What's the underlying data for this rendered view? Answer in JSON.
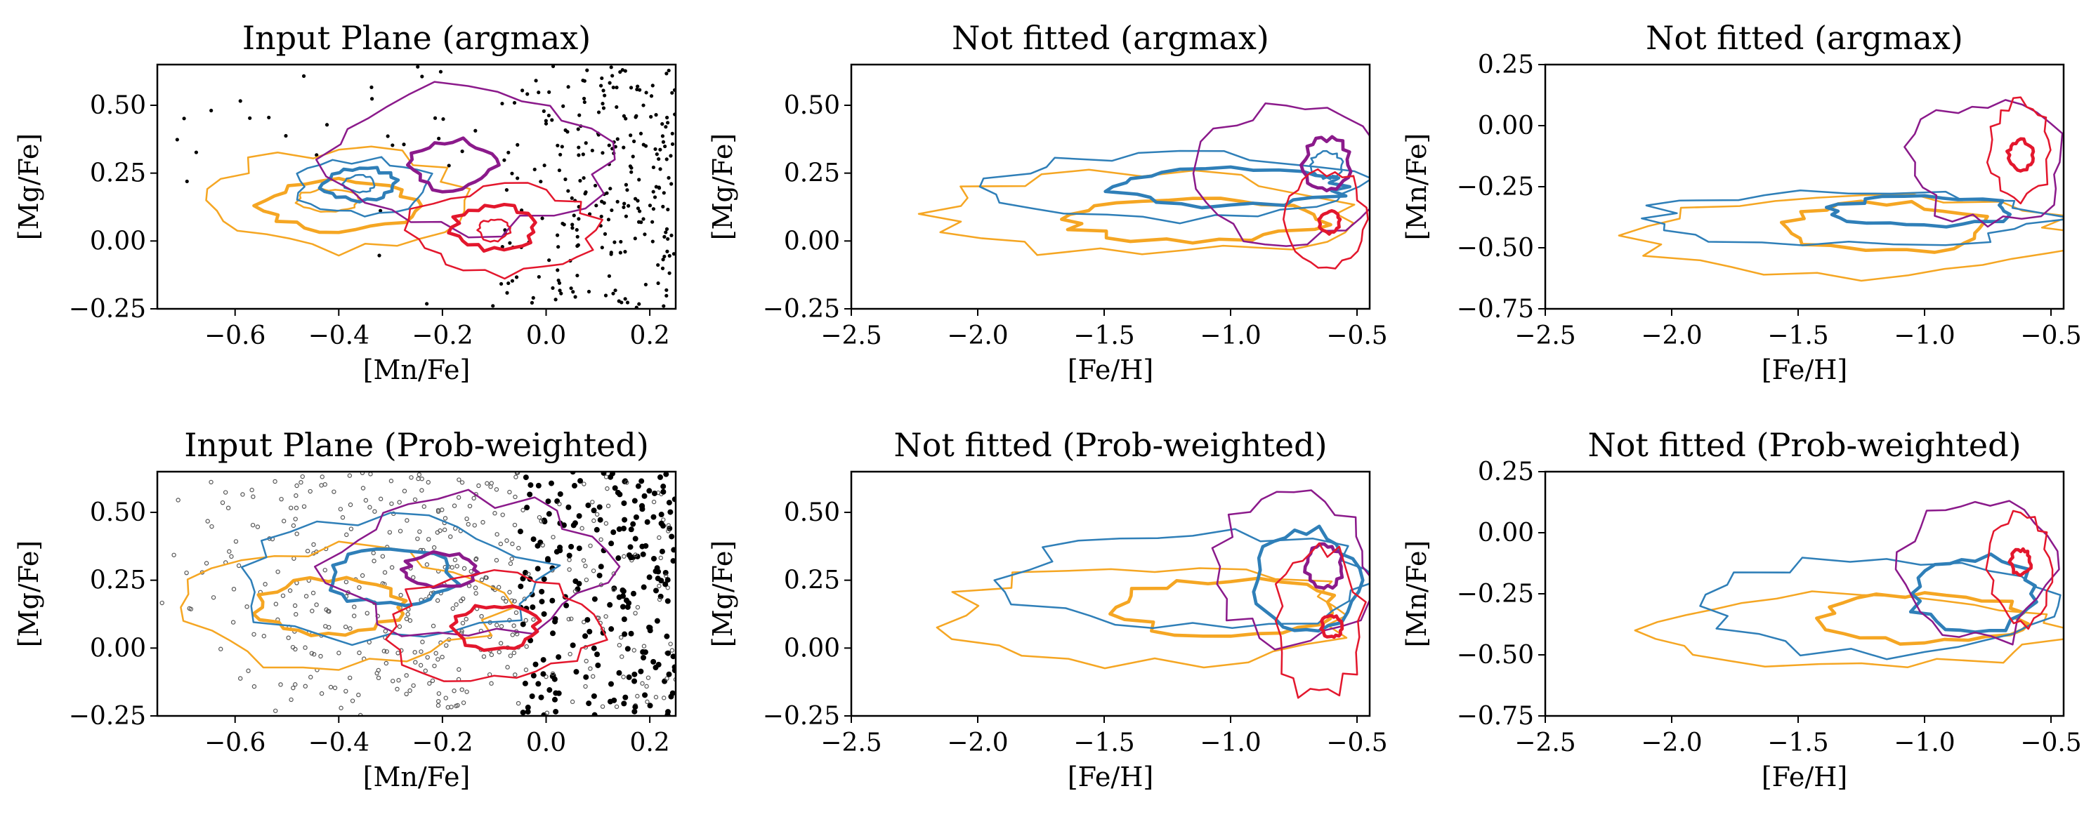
{
  "figure": {
    "type": "contour grid",
    "colors": {
      "orange": "#f5a623",
      "blue": "#2f7fb8",
      "purple": "#8b1a8b",
      "red": "#e3172d",
      "points": "#000000"
    }
  },
  "chart_data": [
    {
      "type": "scatter",
      "title": "Input Plane (argmax)",
      "xlabel": "[Mn/Fe]",
      "ylabel": "[Mg/Fe]",
      "xlim": [
        -0.75,
        0.25
      ],
      "ylim": [
        -0.25,
        0.65
      ],
      "xticks": [
        -0.6,
        -0.4,
        -0.2,
        0.0,
        0.2
      ],
      "yticks": [
        -0.25,
        0.0,
        0.25,
        0.5
      ],
      "xtick_labels": [
        "−0.6",
        "−0.4",
        "−0.2",
        "0.0",
        "0.2"
      ],
      "ytick_labels": [
        "−0.25",
        "0.00",
        "0.25",
        "0.50"
      ],
      "grid": false,
      "points_style": "argmax",
      "series": [
        {
          "color": "orange",
          "levels": [
            {
              "cx": -0.4,
              "cy": 0.15,
              "rx": 0.25,
              "ry": 0.18,
              "w": 1.4
            },
            {
              "cx": -0.4,
              "cy": 0.13,
              "rx": 0.15,
              "ry": 0.09,
              "w": 2.6
            },
            {
              "cx": -0.42,
              "cy": 0.15,
              "rx": 0.06,
              "ry": 0.04,
              "w": 1.4
            }
          ]
        },
        {
          "color": "blue",
          "levels": [
            {
              "cx": -0.35,
              "cy": 0.2,
              "rx": 0.13,
              "ry": 0.1,
              "w": 1.4
            },
            {
              "cx": -0.36,
              "cy": 0.21,
              "rx": 0.07,
              "ry": 0.06,
              "w": 2.6
            },
            {
              "cx": -0.36,
              "cy": 0.21,
              "rx": 0.03,
              "ry": 0.03,
              "w": 1.4
            }
          ]
        },
        {
          "color": "purple",
          "levels": [
            {
              "cx": -0.15,
              "cy": 0.3,
              "rx": 0.26,
              "ry": 0.26,
              "w": 1.4
            },
            {
              "cx": -0.18,
              "cy": 0.28,
              "rx": 0.08,
              "ry": 0.09,
              "w": 2.6
            }
          ]
        },
        {
          "color": "red",
          "levels": [
            {
              "cx": -0.08,
              "cy": 0.04,
              "rx": 0.18,
              "ry": 0.16,
              "w": 1.4
            },
            {
              "cx": -0.1,
              "cy": 0.05,
              "rx": 0.08,
              "ry": 0.08,
              "w": 2.6
            },
            {
              "cx": -0.1,
              "cy": 0.04,
              "rx": 0.03,
              "ry": 0.04,
              "w": 1.4
            }
          ]
        }
      ]
    },
    {
      "type": "line",
      "title": "Not fitted (argmax)",
      "xlabel": "[Fe/H]",
      "ylabel": "[Mg/Fe]",
      "xlim": [
        -2.5,
        -0.45
      ],
      "ylim": [
        -0.25,
        0.65
      ],
      "xticks": [
        -2.5,
        -2.0,
        -1.5,
        -1.0,
        -0.5
      ],
      "yticks": [
        -0.25,
        0.0,
        0.25,
        0.5
      ],
      "xtick_labels": [
        "−2.5",
        "−2.0",
        "−1.5",
        "−1.0",
        "−0.5"
      ],
      "ytick_labels": [
        "−0.25",
        "0.00",
        "0.25",
        "0.50"
      ],
      "grid": false,
      "series": [
        {
          "color": "orange",
          "levels": [
            {
              "cx": -1.35,
              "cy": 0.1,
              "rx": 0.85,
              "ry": 0.15,
              "w": 1.4
            },
            {
              "cx": -1.15,
              "cy": 0.08,
              "rx": 0.5,
              "ry": 0.08,
              "w": 2.6
            }
          ]
        },
        {
          "color": "blue",
          "levels": [
            {
              "cx": -1.2,
              "cy": 0.2,
              "rx": 0.7,
              "ry": 0.12,
              "w": 1.4
            },
            {
              "cx": -1.0,
              "cy": 0.2,
              "rx": 0.45,
              "ry": 0.07,
              "w": 2.6
            },
            {
              "cx": -0.62,
              "cy": 0.28,
              "rx": 0.06,
              "ry": 0.05,
              "w": 1.4
            }
          ]
        },
        {
          "color": "purple",
          "levels": [
            {
              "cx": -0.78,
              "cy": 0.25,
              "rx": 0.35,
              "ry": 0.25,
              "w": 1.4
            },
            {
              "cx": -0.62,
              "cy": 0.28,
              "rx": 0.09,
              "ry": 0.1,
              "w": 2.6
            }
          ]
        },
        {
          "color": "red",
          "levels": [
            {
              "cx": -0.62,
              "cy": 0.08,
              "rx": 0.15,
              "ry": 0.18,
              "w": 1.4
            },
            {
              "cx": -0.61,
              "cy": 0.07,
              "rx": 0.04,
              "ry": 0.04,
              "w": 2.6
            }
          ]
        }
      ]
    },
    {
      "type": "line",
      "title": "Not fitted (argmax)",
      "xlabel": "[Fe/H]",
      "ylabel": "[Mn/Fe]",
      "xlim": [
        -2.5,
        -0.45
      ],
      "ylim": [
        -0.75,
        0.25
      ],
      "xticks": [
        -2.5,
        -2.0,
        -1.5,
        -1.0,
        -0.5
      ],
      "yticks": [
        -0.75,
        -0.5,
        -0.25,
        0.0,
        0.25
      ],
      "xtick_labels": [
        "−2.5",
        "−2.0",
        "−1.5",
        "−1.0",
        "−0.5"
      ],
      "ytick_labels": [
        "−0.75",
        "−0.50",
        "−0.25",
        "0.00",
        "0.25"
      ],
      "grid": false,
      "series": [
        {
          "color": "orange",
          "levels": [
            {
              "cx": -1.25,
              "cy": -0.45,
              "rx": 0.85,
              "ry": 0.17,
              "w": 1.4
            },
            {
              "cx": -1.15,
              "cy": -0.42,
              "rx": 0.4,
              "ry": 0.1,
              "w": 2.6
            }
          ]
        },
        {
          "color": "blue",
          "levels": [
            {
              "cx": -1.3,
              "cy": -0.38,
              "rx": 0.8,
              "ry": 0.11,
              "w": 1.4
            },
            {
              "cx": -1.0,
              "cy": -0.35,
              "rx": 0.35,
              "ry": 0.06,
              "w": 2.6
            }
          ]
        },
        {
          "color": "purple",
          "levels": [
            {
              "cx": -0.75,
              "cy": -0.15,
              "rx": 0.3,
              "ry": 0.25,
              "w": 1.4
            }
          ]
        },
        {
          "color": "red",
          "levels": [
            {
              "cx": -0.62,
              "cy": -0.1,
              "rx": 0.12,
              "ry": 0.2,
              "w": 1.4
            },
            {
              "cx": -0.62,
              "cy": -0.12,
              "rx": 0.05,
              "ry": 0.06,
              "w": 2.6
            }
          ]
        }
      ]
    },
    {
      "type": "scatter",
      "title": "Input Plane (Prob-weighted)",
      "xlabel": "[Mn/Fe]",
      "ylabel": "[Mg/Fe]",
      "xlim": [
        -0.75,
        0.25
      ],
      "ylim": [
        -0.25,
        0.65
      ],
      "xticks": [
        -0.6,
        -0.4,
        -0.2,
        0.0,
        0.2
      ],
      "yticks": [
        -0.25,
        0.0,
        0.25,
        0.5
      ],
      "xtick_labels": [
        "−0.6",
        "−0.4",
        "−0.2",
        "0.0",
        "0.2"
      ],
      "ytick_labels": [
        "−0.25",
        "0.00",
        "0.25",
        "0.50"
      ],
      "grid": false,
      "points_style": "weighted",
      "series": [
        {
          "color": "orange",
          "levels": [
            {
              "cx": -0.4,
              "cy": 0.15,
              "rx": 0.3,
              "ry": 0.22,
              "w": 1.4
            },
            {
              "cx": -0.42,
              "cy": 0.15,
              "rx": 0.14,
              "ry": 0.1,
              "w": 2.6
            }
          ]
        },
        {
          "color": "blue",
          "levels": [
            {
              "cx": -0.3,
              "cy": 0.25,
              "rx": 0.3,
              "ry": 0.22,
              "w": 1.4
            },
            {
              "cx": -0.3,
              "cy": 0.26,
              "rx": 0.12,
              "ry": 0.1,
              "w": 2.6
            }
          ]
        },
        {
          "color": "purple",
          "levels": [
            {
              "cx": -0.15,
              "cy": 0.3,
              "rx": 0.26,
              "ry": 0.25,
              "w": 1.4
            },
            {
              "cx": -0.2,
              "cy": 0.29,
              "rx": 0.07,
              "ry": 0.06,
              "w": 2.6
            }
          ]
        },
        {
          "color": "red",
          "levels": [
            {
              "cx": -0.1,
              "cy": 0.08,
              "rx": 0.2,
              "ry": 0.2,
              "w": 1.4
            },
            {
              "cx": -0.1,
              "cy": 0.08,
              "rx": 0.08,
              "ry": 0.08,
              "w": 2.6
            }
          ]
        }
      ]
    },
    {
      "type": "line",
      "title": "Not fitted (Prob-weighted)",
      "xlabel": "[Fe/H]",
      "ylabel": "[Mg/Fe]",
      "xlim": [
        -2.5,
        -0.45
      ],
      "ylim": [
        -0.25,
        0.65
      ],
      "xticks": [
        -2.5,
        -2.0,
        -1.5,
        -1.0,
        -0.5
      ],
      "yticks": [
        -0.25,
        0.0,
        0.25,
        0.5
      ],
      "xtick_labels": [
        "−2.5",
        "−2.0",
        "−1.5",
        "−1.0",
        "−0.5"
      ],
      "ytick_labels": [
        "−0.25",
        "0.00",
        "0.25",
        "0.50"
      ],
      "grid": false,
      "series": [
        {
          "color": "orange",
          "levels": [
            {
              "cx": -1.3,
              "cy": 0.12,
              "rx": 0.8,
              "ry": 0.18,
              "w": 1.4
            },
            {
              "cx": -1.0,
              "cy": 0.15,
              "rx": 0.45,
              "ry": 0.1,
              "w": 2.6
            }
          ]
        },
        {
          "color": "blue",
          "levels": [
            {
              "cx": -1.15,
              "cy": 0.25,
              "rx": 0.7,
              "ry": 0.18,
              "w": 1.4
            },
            {
              "cx": -0.7,
              "cy": 0.25,
              "rx": 0.2,
              "ry": 0.18,
              "w": 2.6
            }
          ]
        },
        {
          "color": "purple",
          "levels": [
            {
              "cx": -0.75,
              "cy": 0.3,
              "rx": 0.3,
              "ry": 0.28,
              "w": 1.4
            },
            {
              "cx": -0.63,
              "cy": 0.3,
              "rx": 0.07,
              "ry": 0.08,
              "w": 2.6
            }
          ]
        },
        {
          "color": "red",
          "levels": [
            {
              "cx": -0.65,
              "cy": 0.1,
              "rx": 0.17,
              "ry": 0.28,
              "w": 1.4
            },
            {
              "cx": -0.6,
              "cy": 0.08,
              "rx": 0.04,
              "ry": 0.04,
              "w": 2.6
            }
          ]
        }
      ]
    },
    {
      "type": "line",
      "title": "Not fitted (Prob-weighted)",
      "xlabel": "[Fe/H]",
      "ylabel": "[Mn/Fe]",
      "xlim": [
        -2.5,
        -0.45
      ],
      "ylim": [
        -0.75,
        0.25
      ],
      "xticks": [
        -2.5,
        -2.0,
        -1.5,
        -1.0,
        -0.5
      ],
      "yticks": [
        -0.75,
        -0.5,
        -0.25,
        0.0,
        0.25
      ],
      "xtick_labels": [
        "−2.5",
        "−2.0",
        "−1.5",
        "−1.0",
        "−0.5"
      ],
      "ytick_labels": [
        "−0.75",
        "−0.50",
        "−0.25",
        "0.00",
        "0.25"
      ],
      "grid": false,
      "series": [
        {
          "color": "orange",
          "levels": [
            {
              "cx": -1.25,
              "cy": -0.4,
              "rx": 0.8,
              "ry": 0.15,
              "w": 1.4
            },
            {
              "cx": -1.0,
              "cy": -0.35,
              "rx": 0.4,
              "ry": 0.1,
              "w": 2.6
            }
          ]
        },
        {
          "color": "blue",
          "levels": [
            {
              "cx": -1.15,
              "cy": -0.3,
              "rx": 0.7,
              "ry": 0.2,
              "w": 1.4
            },
            {
              "cx": -0.8,
              "cy": -0.25,
              "rx": 0.25,
              "ry": 0.15,
              "w": 2.6
            }
          ]
        },
        {
          "color": "purple",
          "levels": [
            {
              "cx": -0.8,
              "cy": -0.15,
              "rx": 0.3,
              "ry": 0.3,
              "w": 1.4
            }
          ]
        },
        {
          "color": "red",
          "levels": [
            {
              "cx": -0.62,
              "cy": -0.15,
              "rx": 0.12,
              "ry": 0.22,
              "w": 1.4
            },
            {
              "cx": -0.62,
              "cy": -0.12,
              "rx": 0.04,
              "ry": 0.05,
              "w": 2.6
            }
          ]
        }
      ]
    }
  ]
}
